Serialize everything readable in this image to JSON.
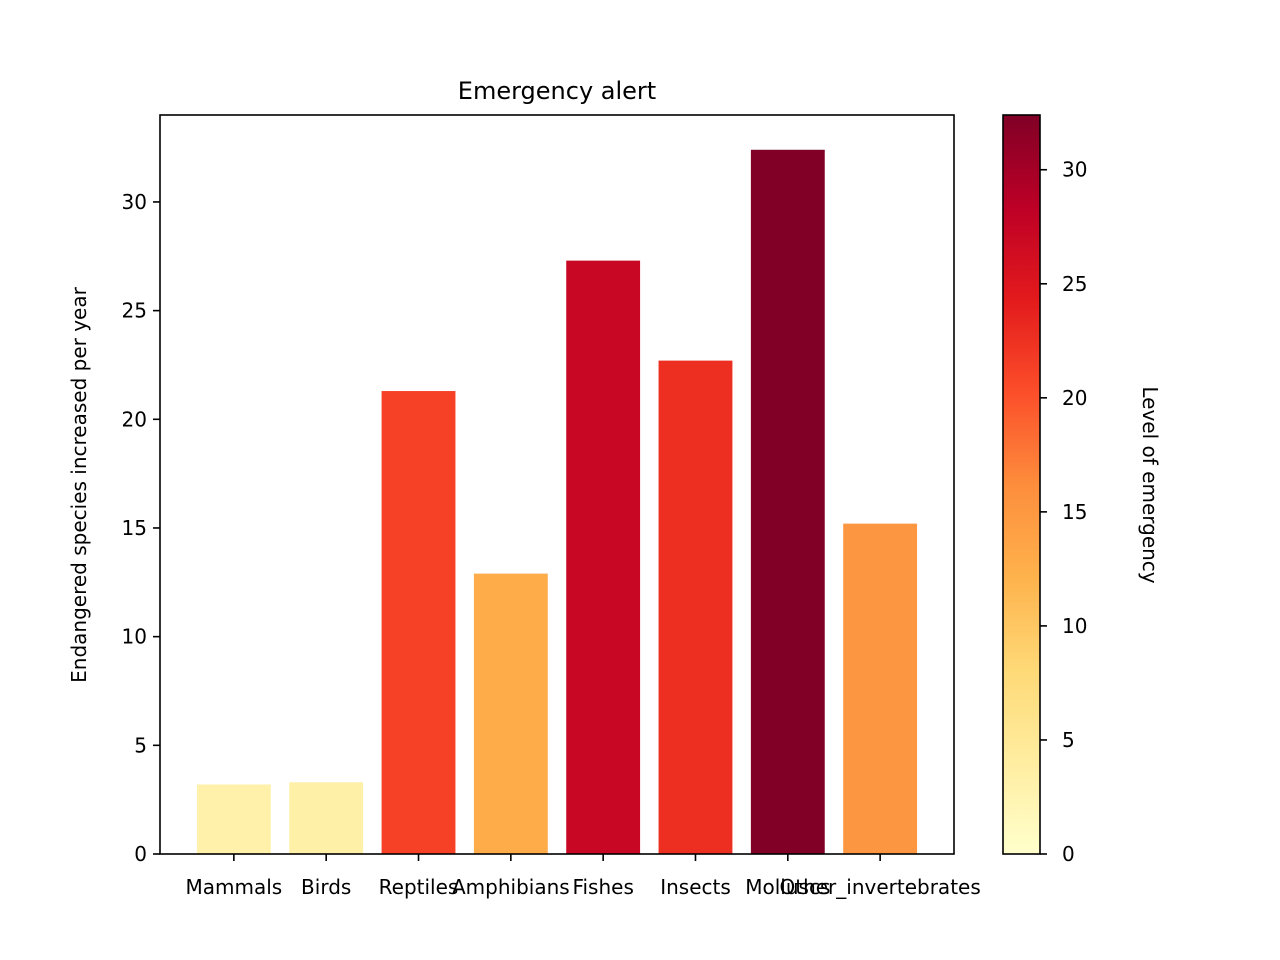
{
  "chart_data": {
    "type": "bar",
    "title": "Emergency alert",
    "xlabel": "",
    "ylabel": "Endangered species increased per year",
    "categories": [
      "Mammals",
      "Birds",
      "Reptiles",
      "Amphibians",
      "Fishes",
      "Insects",
      "Molluscs",
      "Other_invertebrates"
    ],
    "values": [
      3.2,
      3.3,
      21.3,
      12.9,
      27.3,
      22.7,
      32.4,
      15.2
    ],
    "ylim": [
      0,
      34
    ],
    "yticks": [
      0,
      5,
      10,
      15,
      20,
      25,
      30
    ],
    "grid": false,
    "colorbar": {
      "label": "Level of emergency",
      "range": [
        0,
        32.4
      ],
      "ticks": [
        0,
        5,
        10,
        15,
        20,
        25,
        30
      ],
      "colormap": [
        "#ffffcc",
        "#ffeda0",
        "#fed976",
        "#feb24c",
        "#fd8d3c",
        "#fc4e2a",
        "#e31a1c",
        "#bd0026",
        "#800026"
      ]
    }
  }
}
